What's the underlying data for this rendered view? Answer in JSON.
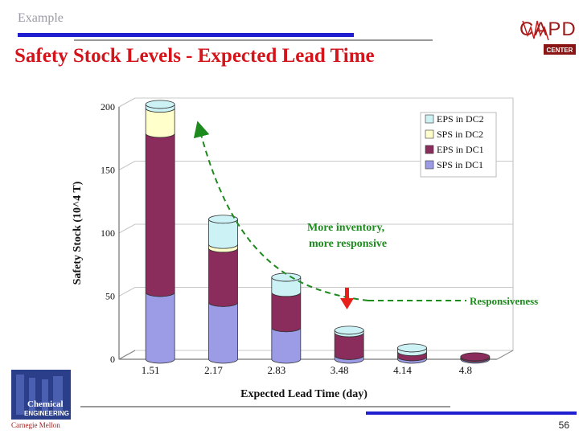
{
  "slide": {
    "header_label": "Example",
    "title": "Safety Stock Levels - Expected Lead Time",
    "page_number": "56",
    "logo_top": "CAPD",
    "logo_sub": "CENTER",
    "logo_bottom_1": "Chemical",
    "logo_bottom_2": "ENGINEERING",
    "logo_bottom_3": "Carnegie Mellon",
    "colors": {
      "title": "#d4141a",
      "blue_rule": "#1f1fd0",
      "accent_green": "#1d8a1d",
      "arrow_red": "#e8201a"
    }
  },
  "chart_data": {
    "type": "bar",
    "stacked": true,
    "xlabel": "Expected Lead Time (day)",
    "ylabel": "Safety Stock (10^4 T)",
    "ylim": [
      0,
      200
    ],
    "yticks": [
      0,
      50,
      100,
      150,
      200
    ],
    "grid": true,
    "legend_position": "top-right",
    "categories": [
      "1.51",
      "2.17",
      "2.83",
      "3.48",
      "4.14",
      "4.8"
    ],
    "series": [
      {
        "name": "SPS in DC1",
        "color": "#9b9be6",
        "values": [
          53,
          45,
          25,
          3,
          2,
          1
        ]
      },
      {
        "name": "EPS in DC1",
        "color": "#8b2d5c",
        "values": [
          126,
          43,
          28,
          18,
          4,
          1
        ]
      },
      {
        "name": "SPS in DC2",
        "color": "#ffffcc",
        "values": [
          20,
          3,
          0,
          0,
          0,
          0
        ]
      },
      {
        "name": "EPS in DC2",
        "color": "#ccf2f5",
        "values": [
          3,
          20,
          12,
          2,
          3,
          0
        ]
      }
    ],
    "annotations": [
      {
        "text": "More inventory,",
        "color": "#1d8a1d"
      },
      {
        "text": "more responsive",
        "color": "#1d8a1d"
      },
      {
        "text": "Responsiveness",
        "color": "#1d8a1d"
      }
    ]
  }
}
